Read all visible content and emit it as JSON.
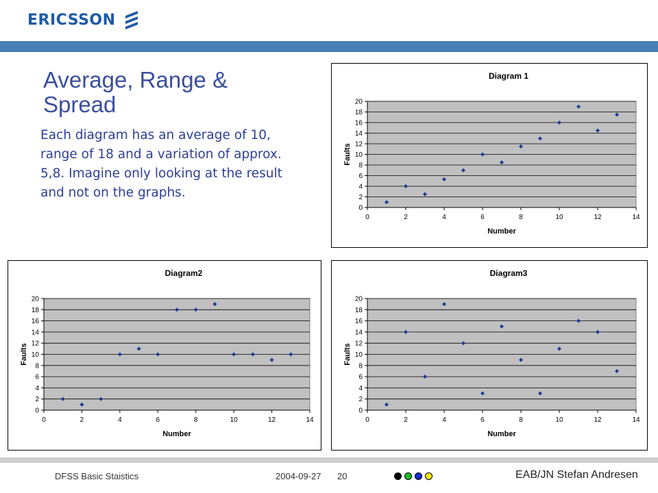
{
  "header": {
    "logo_text": "ERICSSON",
    "logo_icon": "ericsson-stripes-icon",
    "brand_color": "#1f5aa6",
    "bar_color": "#4a7fb5"
  },
  "slide": {
    "title": "Average, Range & Spread",
    "body": "Each diagram has an average of 10, range of 18 and a variation of approx. 5,8. Imagine only looking at the result and not on the graphs."
  },
  "chart_data": [
    {
      "type": "scatter",
      "title": "Diagram 1",
      "xlabel": "Number",
      "ylabel": "Faults",
      "xlim": [
        0,
        14
      ],
      "ylim": [
        0,
        20
      ],
      "xticks": [
        0,
        2,
        4,
        6,
        8,
        10,
        12,
        14
      ],
      "yticks": [
        0,
        2,
        4,
        6,
        8,
        10,
        12,
        14,
        16,
        18,
        20
      ],
      "grid": true,
      "plot_background": "#c0c0c0",
      "marker_color": "#1f3a93",
      "x": [
        1,
        2,
        3,
        4,
        5,
        6,
        7,
        8,
        9,
        10,
        11,
        12,
        13
      ],
      "y": [
        1,
        4,
        2.5,
        5.3,
        7,
        10,
        8.5,
        11.5,
        13,
        16,
        19,
        14.5,
        17.5
      ]
    },
    {
      "type": "scatter",
      "title": "Diagram2",
      "xlabel": "Number",
      "ylabel": "Faults",
      "xlim": [
        0,
        14
      ],
      "ylim": [
        0,
        20
      ],
      "xticks": [
        0,
        2,
        4,
        6,
        8,
        10,
        12,
        14
      ],
      "yticks": [
        0,
        2,
        4,
        6,
        8,
        10,
        12,
        14,
        16,
        18,
        20
      ],
      "grid": true,
      "plot_background": "#c0c0c0",
      "marker_color": "#1f3a93",
      "x": [
        1,
        2,
        3,
        4,
        5,
        6,
        7,
        8,
        9,
        10,
        11,
        12,
        13
      ],
      "y": [
        2,
        1,
        2,
        10,
        11,
        10,
        18,
        18,
        19,
        10,
        10,
        9,
        10
      ]
    },
    {
      "type": "scatter",
      "title": "Diagram3",
      "xlabel": "Number",
      "ylabel": "Faults",
      "xlim": [
        0,
        14
      ],
      "ylim": [
        0,
        20
      ],
      "xticks": [
        0,
        2,
        4,
        6,
        8,
        10,
        12,
        14
      ],
      "yticks": [
        0,
        2,
        4,
        6,
        8,
        10,
        12,
        14,
        16,
        18,
        20
      ],
      "grid": true,
      "plot_background": "#c0c0c0",
      "marker_color": "#1f3a93",
      "x": [
        1,
        2,
        3,
        4,
        5,
        6,
        7,
        8,
        9,
        10,
        11,
        12,
        13
      ],
      "y": [
        1,
        14,
        6,
        19,
        12,
        3,
        15,
        9,
        3,
        11,
        16,
        14,
        7
      ]
    }
  ],
  "footer": {
    "course": "DFSS Basic Staistics",
    "date": "2004-09-27",
    "page": "20",
    "author": "EAB/JN Stefan Andresen",
    "dot_colors": [
      "#000000",
      "#22bb22",
      "#1a2acc",
      "#f2e51a"
    ]
  }
}
